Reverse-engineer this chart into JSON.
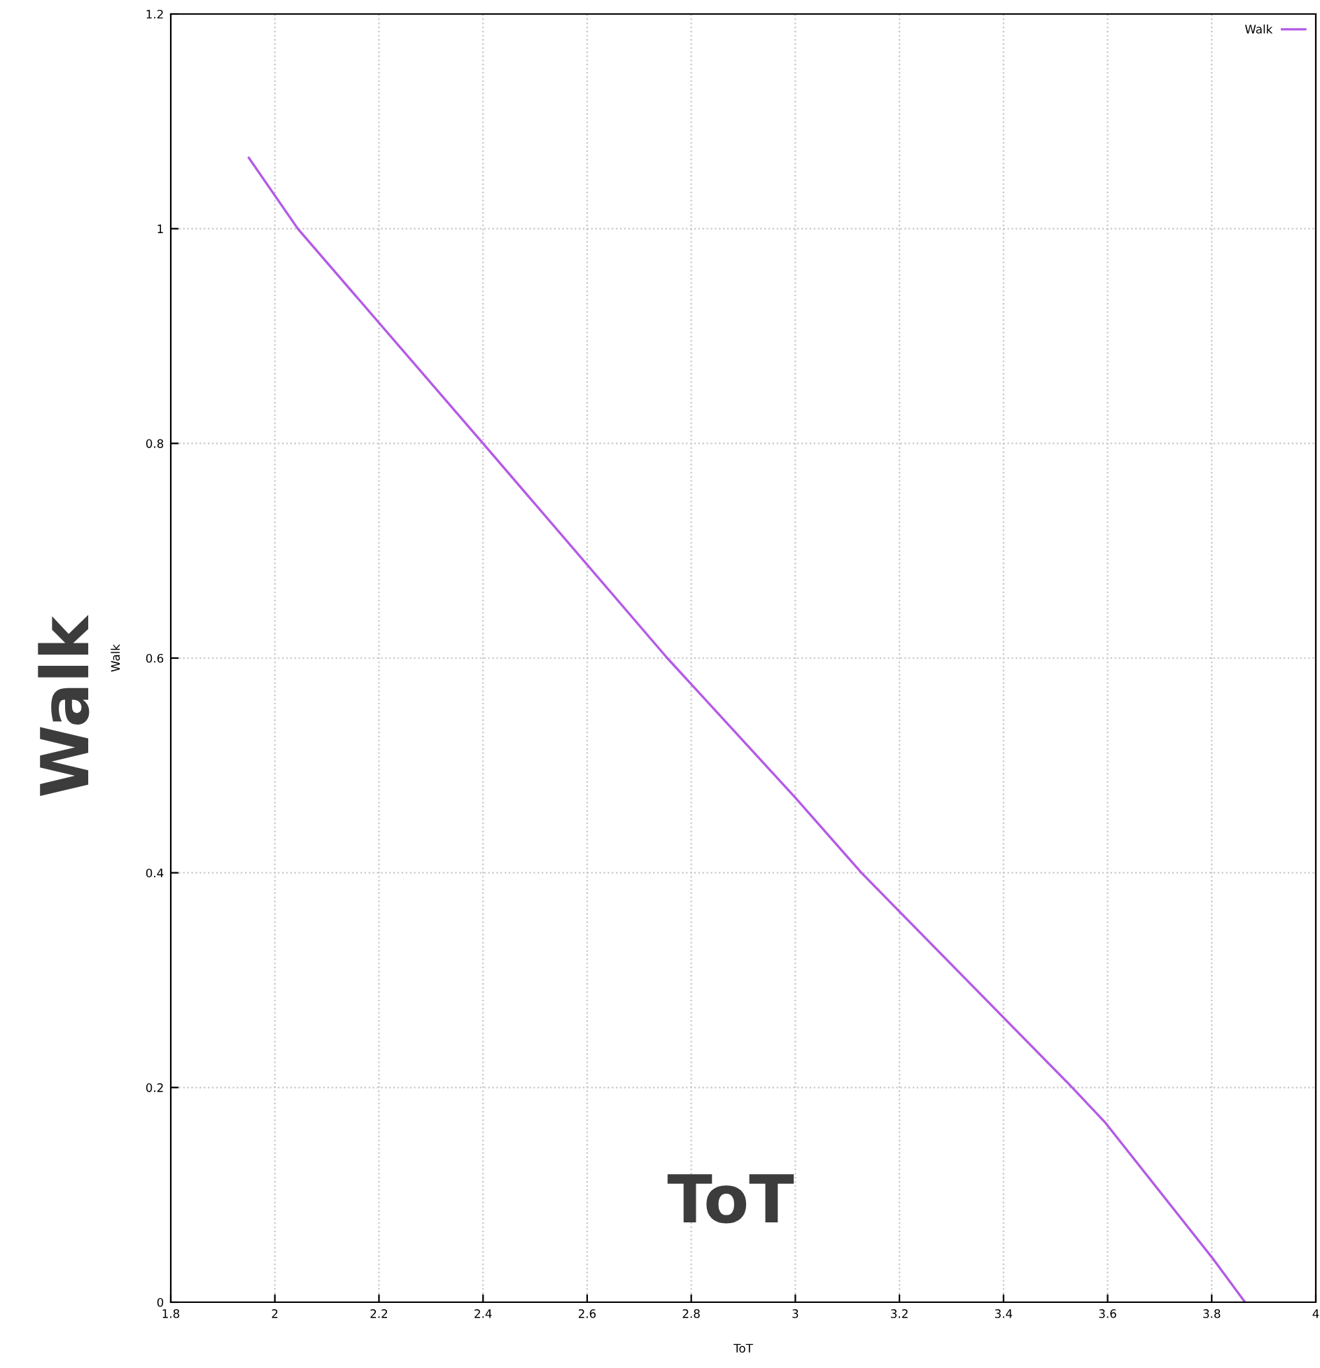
{
  "chart_data": {
    "type": "line",
    "xlabel": "ToT",
    "ylabel": "Walk",
    "annotations": [
      "Walk",
      "ToT"
    ],
    "x": [
      1.95,
      2.044,
      2.4,
      2.754,
      3.0,
      3.127,
      3.532,
      3.596,
      3.8,
      3.864
    ],
    "series": [
      {
        "name": "Walk",
        "color": "#b45ae6",
        "values": [
          1.066,
          1.0,
          0.8,
          0.6,
          0.47,
          0.4,
          0.2,
          0.167,
          0.042,
          0.0
        ]
      }
    ],
    "xlim": [
      1.8,
      4
    ],
    "ylim": [
      0,
      1.2
    ],
    "xticks": [
      1.8,
      2,
      2.2,
      2.4,
      2.6,
      2.8,
      3,
      3.2,
      3.4,
      3.6,
      3.8,
      4
    ],
    "yticks": [
      0,
      0.2,
      0.4,
      0.6,
      0.8,
      1,
      1.2
    ],
    "grid": true,
    "legend": "top right",
    "marker": "none",
    "line_style": "solid"
  }
}
